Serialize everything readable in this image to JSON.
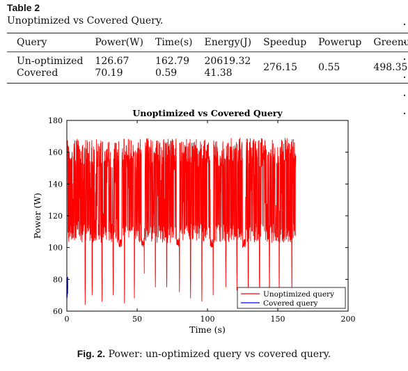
{
  "table": {
    "label": "Table 2",
    "caption": "Unoptimized vs Covered Query.",
    "headers": [
      "Query",
      "Power(W)",
      "Time(s)",
      "Energy(J)",
      "Speedup",
      "Powerup",
      "Greenup"
    ],
    "rows": [
      {
        "query": [
          "Un-optimized",
          "Covered"
        ],
        "power": [
          "126.67",
          "70.19"
        ],
        "time": [
          "162.79",
          "0.59"
        ],
        "energy": [
          "20619.32",
          "41.38"
        ],
        "speedup": "276.15",
        "powerup": "0.55",
        "greenup": "498.35"
      }
    ]
  },
  "chart_data": {
    "type": "line",
    "title": "Unoptimized vs Covered Query",
    "xlabel": "Time (s)",
    "ylabel": "Power (W)",
    "xlim": [
      0,
      200
    ],
    "ylim": [
      60,
      180
    ],
    "xticks": [
      0,
      50,
      100,
      150,
      200
    ],
    "yticks": [
      60,
      80,
      100,
      120,
      140,
      160,
      180
    ],
    "grid": false,
    "legend_position": "bottom-right",
    "series": [
      {
        "name": "Unoptimized query",
        "color": "#ff0000",
        "x_range": [
          0,
          162.79
        ],
        "typical_range": [
          100,
          170
        ],
        "dips": [
          [
            13,
            64
          ],
          [
            18,
            70
          ],
          [
            25,
            66
          ],
          [
            33,
            70
          ],
          [
            41,
            65
          ],
          [
            48,
            68
          ],
          [
            55,
            72
          ],
          [
            63,
            75
          ],
          [
            71,
            75
          ],
          [
            80,
            72
          ],
          [
            88,
            68
          ],
          [
            96,
            66
          ],
          [
            104,
            70
          ],
          [
            113,
            75
          ],
          [
            121,
            73
          ],
          [
            129,
            72
          ],
          [
            137,
            69
          ],
          [
            144,
            68
          ],
          [
            151,
            70
          ],
          [
            160,
            72
          ]
        ]
      },
      {
        "name": "Covered query",
        "color": "#0000ff",
        "x_range": [
          0,
          0.59
        ],
        "typical_range": [
          68,
          82
        ]
      }
    ]
  },
  "figure": {
    "label": "Fig. 2.",
    "caption": "Power: un-optimized query vs covered query."
  }
}
